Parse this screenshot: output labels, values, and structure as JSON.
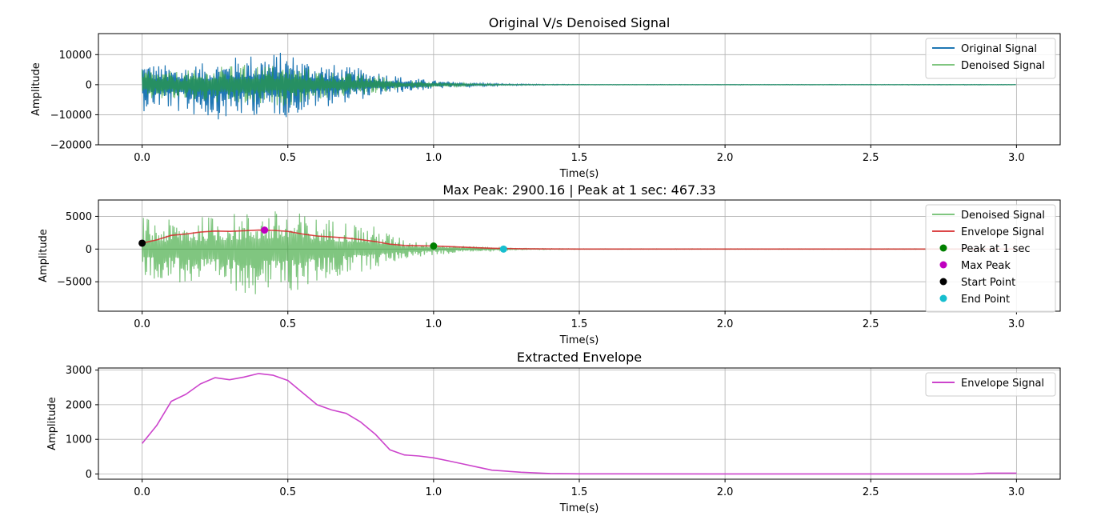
{
  "chart_data": [
    {
      "type": "line",
      "title": "Original V/s Denoised Signal",
      "xlabel": "Time(s)",
      "ylabel": "Amplitude",
      "xlim": [
        -0.15,
        3.15
      ],
      "ylim": [
        -20000,
        17000
      ],
      "xticks": [
        0.0,
        0.5,
        1.0,
        1.5,
        2.0,
        2.5,
        3.0
      ],
      "xtick_labels": [
        "0.0",
        "0.5",
        "1.0",
        "1.5",
        "2.0",
        "2.5",
        "3.0"
      ],
      "yticks": [
        -20000,
        -10000,
        0,
        10000
      ],
      "ytick_labels": [
        "−20000",
        "−10000",
        "0",
        "10000"
      ],
      "grid": true,
      "legend_position": "upper right",
      "series": [
        {
          "name": "Original Signal",
          "color": "#1f77b4",
          "style": "dense-oscillation",
          "envelope": {
            "t": [
              0.0,
              0.05,
              0.1,
              0.2,
              0.3,
              0.4,
              0.5,
              0.6,
              0.7,
              0.8,
              0.9,
              1.0,
              1.1,
              1.2,
              1.3,
              1.5,
              3.0
            ],
            "upper": [
              9000,
              7000,
              6500,
              7000,
              9000,
              11000,
              11000,
              8000,
              6000,
              5000,
              2500,
              1500,
              800,
              400,
              200,
              80,
              80
            ],
            "lower": [
              -9000,
              -8000,
              -9000,
              -11000,
              -12000,
              -10000,
              -11000,
              -8000,
              -6000,
              -4000,
              -2500,
              -1500,
              -800,
              -400,
              -200,
              -80,
              -80
            ]
          }
        },
        {
          "name": "Denoised Signal",
          "color": "#2ca02c",
          "opacity": 0.6,
          "style": "dense-oscillation",
          "envelope": {
            "t": [
              0.0,
              0.05,
              0.1,
              0.2,
              0.3,
              0.4,
              0.5,
              0.6,
              0.7,
              0.8,
              0.9,
              1.0,
              1.1,
              1.2,
              1.3,
              1.5,
              3.0
            ],
            "upper": [
              6000,
              5000,
              4500,
              5000,
              6500,
              7000,
              6500,
              5000,
              4000,
              3500,
              1500,
              900,
              500,
              250,
              100,
              40,
              40
            ],
            "lower": [
              -6000,
              -5000,
              -5500,
              -6000,
              -7000,
              -7500,
              -7000,
              -5000,
              -4000,
              -3000,
              -1500,
              -900,
              -500,
              -250,
              -100,
              -40,
              -40
            ]
          }
        }
      ]
    },
    {
      "type": "line",
      "title": "Max Peak: 2900.16 | Peak at 1 sec: 467.33",
      "xlabel": "Time(s)",
      "ylabel": "Amplitude",
      "xlim": [
        -0.15,
        3.15
      ],
      "ylim": [
        -9500,
        7500
      ],
      "xticks": [
        0.0,
        0.5,
        1.0,
        1.5,
        2.0,
        2.5,
        3.0
      ],
      "xtick_labels": [
        "0.0",
        "0.5",
        "1.0",
        "1.5",
        "2.0",
        "2.5",
        "3.0"
      ],
      "yticks": [
        -5000,
        0,
        5000
      ],
      "ytick_labels": [
        "−5000",
        "0",
        "5000"
      ],
      "grid": true,
      "legend_position": "upper right",
      "series": [
        {
          "name": "Denoised Signal",
          "color": "#2ca02c",
          "opacity": 0.6,
          "style": "dense-oscillation",
          "envelope": {
            "t": [
              0.0,
              0.05,
              0.1,
              0.2,
              0.3,
              0.4,
              0.5,
              0.6,
              0.7,
              0.8,
              0.9,
              1.0,
              1.1,
              1.2,
              1.3,
              1.5,
              3.0
            ],
            "upper": [
              5000,
              4500,
              4500,
              5000,
              5500,
              6000,
              6000,
              5000,
              4500,
              3500,
              1500,
              1000,
              500,
              250,
              100,
              40,
              40
            ],
            "lower": [
              -5000,
              -4500,
              -5000,
              -6000,
              -6500,
              -7000,
              -7000,
              -5500,
              -4000,
              -3000,
              -1500,
              -1000,
              -500,
              -250,
              -100,
              -40,
              -40
            ]
          }
        },
        {
          "name": "Envelope Signal",
          "color": "#d62728",
          "opacity": 0.85,
          "x": [
            0.0,
            0.05,
            0.1,
            0.15,
            0.2,
            0.25,
            0.3,
            0.35,
            0.4,
            0.45,
            0.5,
            0.55,
            0.6,
            0.65,
            0.7,
            0.75,
            0.8,
            0.85,
            0.9,
            0.95,
            1.0,
            1.05,
            1.1,
            1.15,
            1.2,
            1.3,
            1.4,
            1.5,
            2.0,
            2.5,
            3.0
          ],
          "y": [
            900,
            1400,
            2100,
            2300,
            2600,
            2750,
            2700,
            2800,
            2900,
            2850,
            2700,
            2300,
            2000,
            1850,
            1700,
            1450,
            1150,
            750,
            550,
            500,
            467,
            380,
            300,
            200,
            120,
            50,
            15,
            5,
            3,
            3,
            5
          ]
        },
        {
          "name": "Peak at 1 sec",
          "color": "#008000",
          "marker": "circle",
          "x": [
            1.0
          ],
          "y": [
            467.33
          ]
        },
        {
          "name": "Max Peak",
          "color": "#bf00bf",
          "marker": "circle",
          "x": [
            0.42
          ],
          "y": [
            2900.16
          ]
        },
        {
          "name": "Start Point",
          "color": "#000000",
          "marker": "circle",
          "x": [
            0.0
          ],
          "y": [
            900
          ]
        },
        {
          "name": "End Point",
          "color": "#17becf",
          "marker": "circle",
          "x": [
            1.24
          ],
          "y": [
            0
          ]
        }
      ]
    },
    {
      "type": "line",
      "title": "Extracted Envelope",
      "xlabel": "Time(s)",
      "ylabel": "Amplitude",
      "xlim": [
        -0.15,
        3.15
      ],
      "ylim": [
        -150,
        3060
      ],
      "xticks": [
        0.0,
        0.5,
        1.0,
        1.5,
        2.0,
        2.5,
        3.0
      ],
      "xtick_labels": [
        "0.0",
        "0.5",
        "1.0",
        "1.5",
        "2.0",
        "2.5",
        "3.0"
      ],
      "yticks": [
        0,
        1000,
        2000,
        3000
      ],
      "ytick_labels": [
        "0",
        "1000",
        "2000",
        "3000"
      ],
      "grid": true,
      "legend_position": "upper right",
      "series": [
        {
          "name": "Envelope Signal",
          "color": "#cc44cc",
          "x": [
            0.0,
            0.05,
            0.1,
            0.15,
            0.2,
            0.25,
            0.3,
            0.35,
            0.4,
            0.45,
            0.5,
            0.55,
            0.6,
            0.65,
            0.7,
            0.75,
            0.8,
            0.85,
            0.9,
            0.95,
            1.0,
            1.05,
            1.1,
            1.15,
            1.2,
            1.3,
            1.4,
            1.5,
            2.0,
            2.5,
            2.85,
            2.9,
            3.0
          ],
          "y": [
            880,
            1400,
            2100,
            2300,
            2600,
            2780,
            2720,
            2800,
            2900,
            2850,
            2700,
            2350,
            2000,
            1850,
            1750,
            1500,
            1150,
            700,
            550,
            520,
            467,
            380,
            290,
            200,
            110,
            50,
            15,
            5,
            3,
            3,
            3,
            25,
            25
          ]
        }
      ]
    }
  ]
}
